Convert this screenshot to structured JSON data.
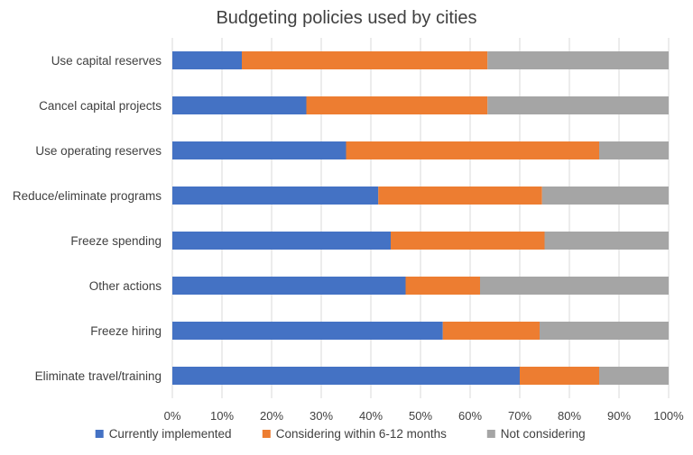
{
  "chart_data": {
    "type": "bar",
    "orientation": "horizontal",
    "stacked": "percent",
    "title": "Budgeting policies used by cities",
    "xlabel": "",
    "ylabel": "",
    "xlim": [
      0,
      100
    ],
    "x_ticks": [
      "0%",
      "10%",
      "20%",
      "30%",
      "40%",
      "50%",
      "60%",
      "70%",
      "80%",
      "90%",
      "100%"
    ],
    "grid": true,
    "legend_position": "bottom",
    "categories": [
      "Use capital reserves",
      "Cancel capital projects",
      "Use operating reserves",
      "Reduce/eliminate programs",
      "Freeze spending",
      "Other actions",
      "Freeze hiring",
      "Eliminate travel/training"
    ],
    "series": [
      {
        "name": "Currently implemented",
        "color": "#4472C4",
        "values": [
          14,
          27,
          35,
          41.5,
          44,
          47,
          54.5,
          70
        ]
      },
      {
        "name": "Considering within 6-12 months",
        "color": "#ED7D31",
        "values": [
          49.5,
          36.5,
          51,
          33,
          31,
          15,
          19.5,
          16
        ]
      },
      {
        "name": "Not considering",
        "color": "#A5A5A5",
        "values": [
          36.5,
          36.5,
          14,
          25.5,
          25,
          38,
          26,
          14
        ]
      }
    ]
  }
}
